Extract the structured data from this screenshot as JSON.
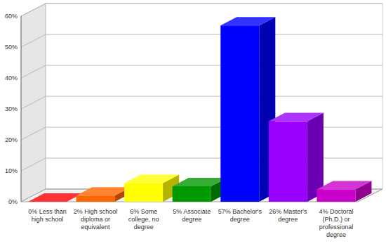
{
  "chart_data": {
    "type": "bar",
    "categories": [
      "0% Less than high school",
      "2% High school diploma or equivalent",
      "6% Some college, no degree",
      "5% Associate degree",
      "57% Bachelor's degree",
      "26% Master's degree",
      "4% Doctoral (Ph.D.) or professional degree"
    ],
    "values": [
      0,
      2,
      6,
      5,
      57,
      26,
      4
    ],
    "colors": [
      "#ff0000",
      "#ff6600",
      "#ffff00",
      "#009900",
      "#0000ff",
      "#9900ff",
      "#cc00cc"
    ],
    "ylim": [
      0,
      60
    ],
    "yticks": [
      {
        "value": 0,
        "label": "0%"
      },
      {
        "value": 10,
        "label": "10%"
      },
      {
        "value": 20,
        "label": "20%"
      },
      {
        "value": 30,
        "label": "30%"
      },
      {
        "value": 40,
        "label": "40%"
      },
      {
        "value": 50,
        "label": "50%"
      },
      {
        "value": 60,
        "label": "60%"
      }
    ],
    "grid": true
  }
}
